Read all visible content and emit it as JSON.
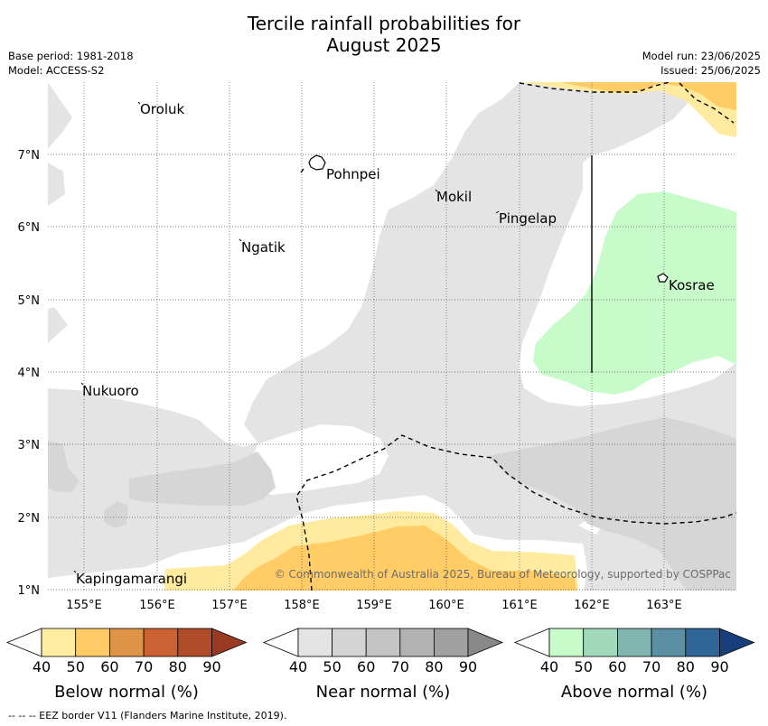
{
  "title": {
    "line1": "Tercile rainfall probabilities for",
    "line2": "August 2025"
  },
  "meta": {
    "base_period": "Base period: 1981-2018",
    "model": "Model: ACCESS-S2",
    "model_run": "Model run: 23/06/2025",
    "issued": "Issued: 25/06/2025"
  },
  "map": {
    "lat_labels": [
      "7°N",
      "6°N",
      "5°N",
      "4°N",
      "3°N",
      "2°N",
      "1°N"
    ],
    "lon_labels": [
      "155°E",
      "156°E",
      "157°E",
      "158°E",
      "159°E",
      "160°E",
      "161°E",
      "162°E",
      "163°E"
    ],
    "places": [
      "Oroluk",
      "Pohnpei",
      "Mokil",
      "Pingelap",
      "Ngatik",
      "Kosrae",
      "Nukuoro",
      "Kapingamarangi"
    ],
    "copyright": "© Commonwealth of Australia 2025, Bureau of Meteorology, supported by COSPPac",
    "colors": {
      "near_normal": "#e4e4e4",
      "near_normal_dark": "#d6d6d6",
      "below_40": "#ffeba0",
      "below_50": "#ffcc66",
      "above_40": "#c7fcca"
    }
  },
  "colorbars": [
    {
      "label": "Below normal (%)",
      "ticks": [
        "40",
        "50",
        "60",
        "70",
        "80",
        "90"
      ],
      "colors": [
        "#ffeda0",
        "#fdcc66",
        "#e09447",
        "#cc6232",
        "#b14c2a",
        "#993a22"
      ]
    },
    {
      "label": "Near normal (%)",
      "ticks": [
        "40",
        "50",
        "60",
        "70",
        "80",
        "90"
      ],
      "colors": [
        "#e4e4e4",
        "#d4d4d4",
        "#c4c4c4",
        "#b2b2b2",
        "#a0a0a0",
        "#888888"
      ]
    },
    {
      "label": "Above normal (%)",
      "ticks": [
        "40",
        "50",
        "60",
        "70",
        "80",
        "90"
      ],
      "colors": [
        "#c7fcca",
        "#a2d9bb",
        "#80b5b0",
        "#5b8fa3",
        "#2f6597",
        "#173f7b"
      ]
    }
  ],
  "footer": "--  --  -- EEZ border V11 (Flanders Marine Institute, 2019)."
}
